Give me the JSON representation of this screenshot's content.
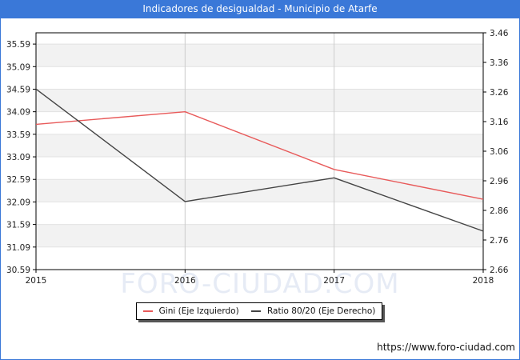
{
  "title": "Indicadores de desigualdad - Municipio de Atarfe",
  "watermark": "FORO-CIUDAD.COM",
  "source_url": "https://www.foro-ciudad.com",
  "colors": {
    "header": "#3a78d8",
    "gini": "#e85a5a",
    "ratio": "#444444"
  },
  "chart_data": {
    "type": "line",
    "x": [
      2015,
      2016,
      2017,
      2018
    ],
    "x_tick_labels": [
      "2015",
      "2016",
      "2017",
      "2018"
    ],
    "series": [
      {
        "name": "Gini (Eje Izquierdo)",
        "axis": "left",
        "values": [
          33.81,
          34.09,
          32.81,
          32.15
        ]
      },
      {
        "name": "Ratio 80/20 (Eje Derecho)",
        "axis": "right",
        "values": [
          3.27,
          2.89,
          2.97,
          2.79
        ]
      }
    ],
    "y_left": {
      "ylim": [
        30.59,
        35.84
      ],
      "tick_labels": [
        "30.59",
        "31.09",
        "31.59",
        "32.09",
        "32.59",
        "33.09",
        "33.59",
        "34.09",
        "34.59",
        "35.09",
        "35.59"
      ]
    },
    "y_right": {
      "ylim": [
        2.66,
        3.46
      ],
      "tick_labels": [
        "2.66",
        "2.76",
        "2.86",
        "2.96",
        "3.06",
        "3.16",
        "3.26",
        "3.36",
        "3.46"
      ]
    },
    "grid": true,
    "legend_position": "bottom-center"
  }
}
